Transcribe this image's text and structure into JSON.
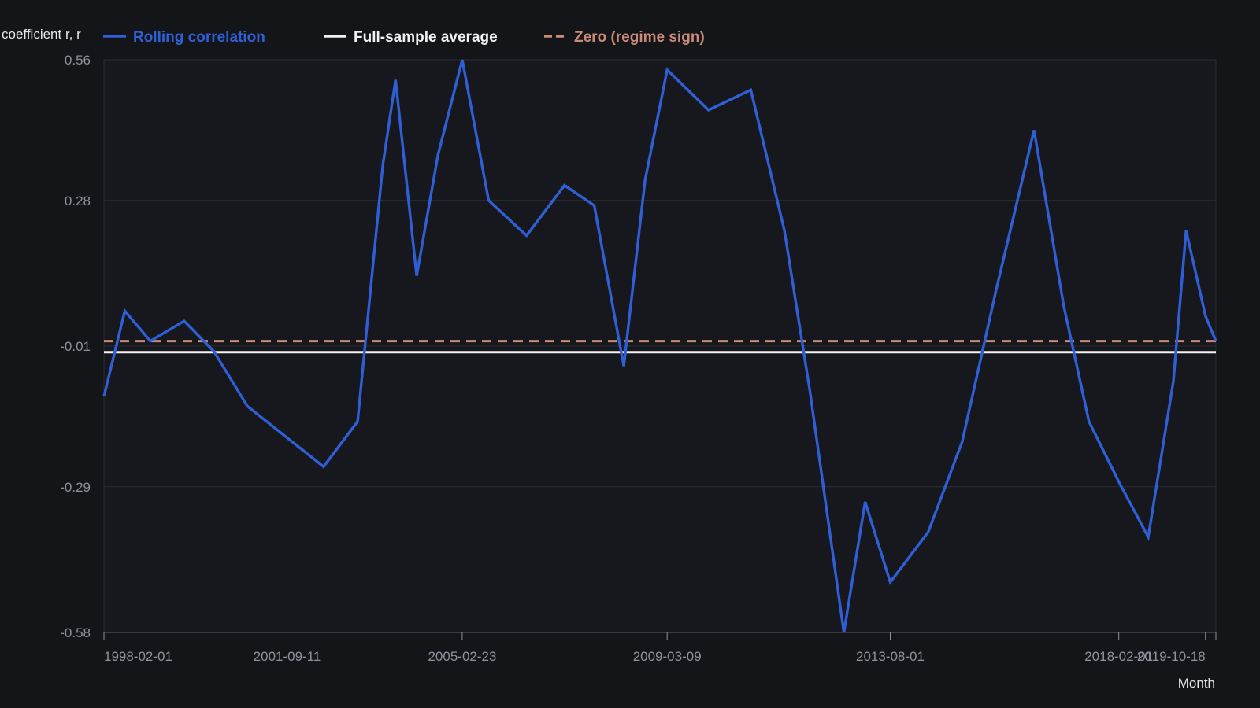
{
  "chart_data": {
    "type": "line",
    "title": "",
    "xlabel": "Month",
    "ylabel": "coefficient r, r",
    "ylim": [
      -0.58,
      0.56
    ],
    "xlim": [
      "1998-02-01",
      "2020-01-01"
    ],
    "grid": true,
    "legend_position": "top-left",
    "y_ticks": [
      "0.56",
      "0.28",
      "-0.01",
      "-0.29",
      "-0.58"
    ],
    "y_tick_values": [
      0.56,
      0.28,
      -0.01,
      -0.29,
      -0.58
    ],
    "x_ticks": [
      "1998-02-01",
      "2001-09-11",
      "2005-02-23",
      "2009-03-09",
      "2013-08-01",
      "2018-02-01",
      "2019-10-18"
    ],
    "series": [
      {
        "name": "Rolling correlation",
        "style": "solid",
        "color": "#2f5fd6",
        "x": [
          "1998-02-01",
          "1998-07-01",
          "1999-01-01",
          "1999-09-01",
          "2000-04-01",
          "2000-12-01",
          "2001-09-01",
          "2002-06-01",
          "2003-02-01",
          "2003-08-01",
          "2003-11-01",
          "2004-04-01",
          "2004-09-01",
          "2005-02-23",
          "2005-09-01",
          "2006-06-01",
          "2007-03-01",
          "2007-10-01",
          "2008-05-01",
          "2008-10-01",
          "2009-03-09",
          "2010-01-01",
          "2010-11-01",
          "2011-07-01",
          "2012-01-01",
          "2012-09-01",
          "2013-02-01",
          "2013-08-01",
          "2014-05-01",
          "2015-01-01",
          "2015-09-01",
          "2016-06-01",
          "2017-01-01",
          "2017-07-01",
          "2018-02-01",
          "2018-09-01",
          "2019-03-01",
          "2019-06-01",
          "2019-10-18",
          "2020-01-01"
        ],
        "values": [
          -0.11,
          0.06,
          0.0,
          0.04,
          -0.02,
          -0.13,
          -0.19,
          -0.25,
          -0.16,
          0.35,
          0.52,
          0.13,
          0.37,
          0.56,
          0.28,
          0.21,
          0.31,
          0.27,
          -0.05,
          0.32,
          0.54,
          0.46,
          0.5,
          0.22,
          -0.1,
          -0.58,
          -0.32,
          -0.48,
          -0.38,
          -0.2,
          0.1,
          0.42,
          0.07,
          -0.16,
          -0.28,
          -0.39,
          -0.08,
          0.22,
          0.05,
          0.0
        ]
      },
      {
        "name": "Full-sample average",
        "style": "solid",
        "color": "#f2f2f2",
        "x": [
          "1998-02-01",
          "2020-01-01"
        ],
        "values": [
          -0.022,
          -0.022
        ]
      },
      {
        "name": "Zero (regime sign)",
        "style": "dashed",
        "color": "#c98a78",
        "x": [
          "1998-02-01",
          "2020-01-01"
        ],
        "values": [
          0.0,
          0.0
        ]
      }
    ]
  }
}
